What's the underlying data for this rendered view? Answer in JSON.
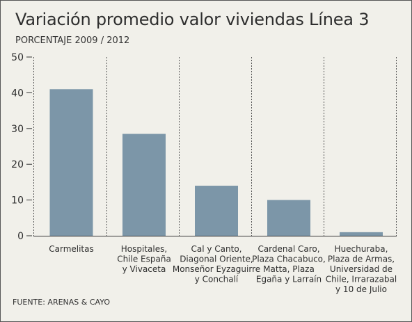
{
  "header": {
    "title": "Variación promedio valor viviendas Línea 3",
    "subtitle": "PORCENTAJE 2009 / 2012"
  },
  "footer": {
    "source": "FUENTE: ARENAS & CAYO"
  },
  "colors": {
    "bar": "#7c96a8",
    "background": "#f1f0ea",
    "axis": "#333333",
    "divider": "#555555"
  },
  "chart_data": {
    "type": "bar",
    "title": "Variación promedio valor viviendas Línea 3",
    "subtitle": "PORCENTAJE 2009 / 2012",
    "xlabel": "",
    "ylabel": "",
    "ylim": [
      0,
      50
    ],
    "yticks": [
      0,
      10,
      20,
      30,
      40,
      50
    ],
    "grid": false,
    "legend": "none",
    "categories": [
      [
        "Carmelitas"
      ],
      [
        "Hospitales,",
        "Chile España",
        "y Vivaceta"
      ],
      [
        "Cal y Canto,",
        "Diagonal Oriente,",
        "Monseñor Eyzaguirre",
        "y Conchalí"
      ],
      [
        "Cardenal Caro,",
        "Plaza Chacabuco,",
        "Matta, Plaza",
        "Egaña y Larraín"
      ],
      [
        "Huechuraba,",
        "Plaza de Armas,",
        "Universidad de",
        "Chile, Irrarazabal",
        "y 10 de Julio"
      ]
    ],
    "values": [
      41,
      28.5,
      14,
      10,
      1
    ]
  }
}
